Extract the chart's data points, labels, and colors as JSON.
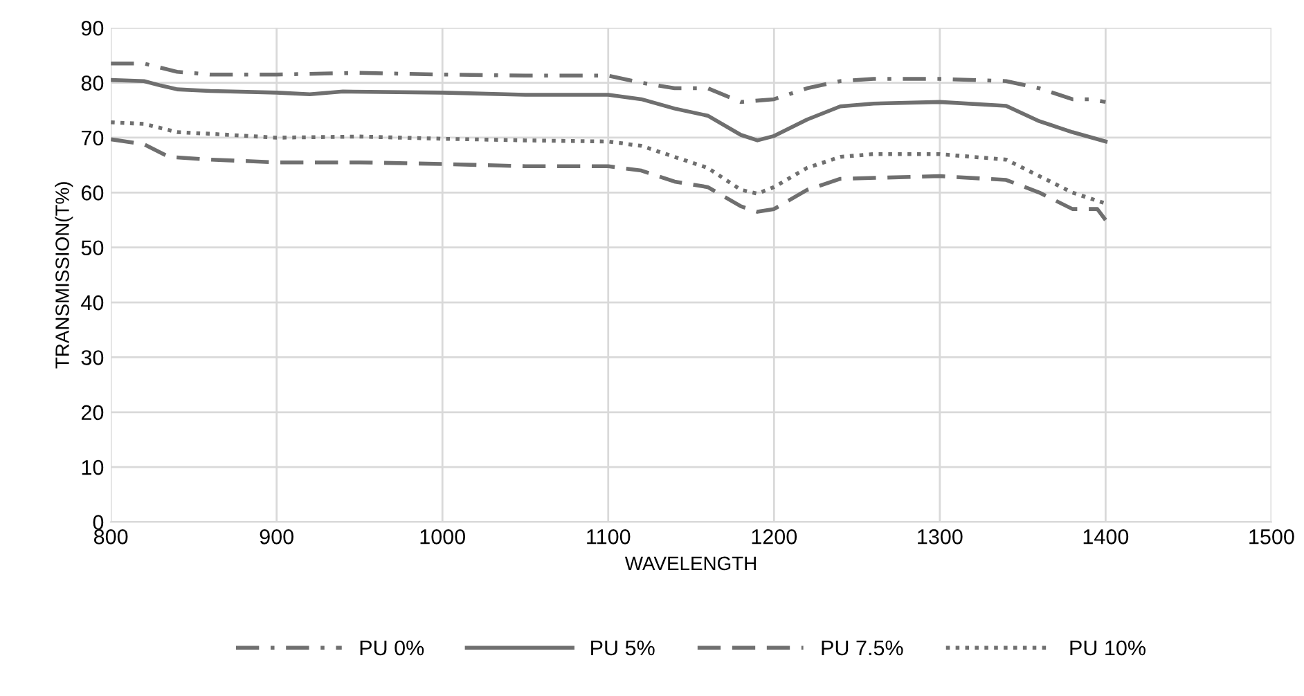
{
  "chart_data": {
    "type": "line",
    "xlabel": "WAVELENGTH",
    "ylabel": "TRANSMISSION(T%)",
    "xlim": [
      800,
      1500
    ],
    "xticks": [
      800,
      900,
      1000,
      1100,
      1200,
      1300,
      1400,
      1500
    ],
    "ylim": [
      0,
      90
    ],
    "yticks": [
      0,
      10,
      20,
      30,
      40,
      50,
      60,
      70,
      80,
      90
    ],
    "grid": true,
    "legend": "bottom",
    "marker": "none",
    "series": [
      {
        "name": "PU 0%",
        "color": "#6f6f6f",
        "line_style": "dashdot",
        "x": [
          800,
          820,
          840,
          860,
          900,
          950,
          1000,
          1050,
          1100,
          1120,
          1140,
          1160,
          1180,
          1200,
          1220,
          1240,
          1260,
          1300,
          1340,
          1360,
          1380,
          1390,
          1400
        ],
        "values": [
          83.5,
          83.5,
          82,
          81.5,
          81.5,
          81.8,
          81.5,
          81.3,
          81.3,
          80,
          79,
          79,
          76.5,
          77,
          79,
          80.3,
          80.7,
          80.7,
          80.3,
          79,
          77,
          77,
          76.5
        ]
      },
      {
        "name": "PU 5%",
        "color": "#6f6f6f",
        "line_style": "solid",
        "x": [
          800,
          820,
          830,
          840,
          860,
          900,
          920,
          940,
          1000,
          1050,
          1100,
          1120,
          1140,
          1160,
          1180,
          1190,
          1200,
          1220,
          1240,
          1260,
          1300,
          1340,
          1360,
          1380,
          1400
        ],
        "values": [
          80.5,
          80.3,
          79.5,
          78.8,
          78.5,
          78.2,
          77.9,
          78.4,
          78.2,
          77.8,
          77.8,
          77,
          75.3,
          74,
          70.5,
          69.5,
          70.3,
          73.3,
          75.7,
          76.2,
          76.5,
          75.8,
          73,
          71,
          69.3
        ]
      },
      {
        "name": "PU 7.5%",
        "color": "#6f6f6f",
        "line_style": "dashed",
        "x": [
          800,
          820,
          835,
          860,
          900,
          950,
          1000,
          1050,
          1100,
          1120,
          1140,
          1160,
          1180,
          1190,
          1200,
          1220,
          1240,
          1300,
          1340,
          1360,
          1380,
          1395,
          1400
        ],
        "values": [
          69.7,
          68.8,
          66.5,
          66,
          65.5,
          65.5,
          65.2,
          64.8,
          64.8,
          64,
          62,
          61,
          57.5,
          56.5,
          57,
          60.5,
          62.5,
          63,
          62.3,
          60,
          57,
          57,
          55
        ]
      },
      {
        "name": "PU 10%",
        "color": "#6f6f6f",
        "line_style": "dotted",
        "x": [
          800,
          820,
          840,
          860,
          900,
          950,
          1000,
          1050,
          1100,
          1120,
          1140,
          1160,
          1180,
          1190,
          1200,
          1220,
          1240,
          1260,
          1300,
          1340,
          1360,
          1380,
          1400
        ],
        "values": [
          72.8,
          72.5,
          71,
          70.7,
          70,
          70.2,
          69.8,
          69.5,
          69.3,
          68.5,
          66.5,
          64.5,
          60.5,
          59.8,
          61,
          64.5,
          66.5,
          67,
          67,
          66,
          63,
          60,
          58
        ]
      }
    ]
  }
}
